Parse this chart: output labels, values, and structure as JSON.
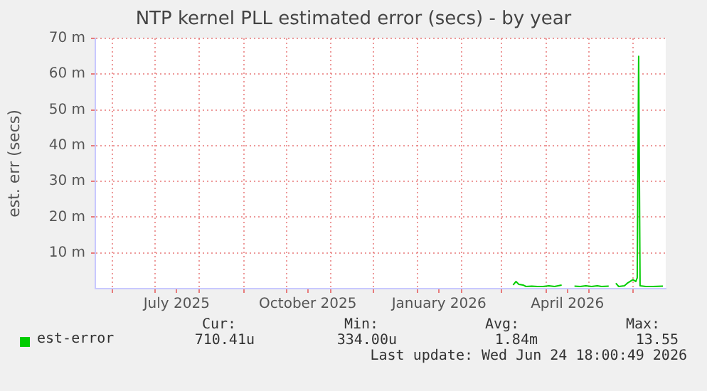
{
  "chart_data": {
    "type": "line",
    "title": "NTP kernel PLL estimated error (secs) - by year",
    "ylabel": "est. err (secs)",
    "x": [
      "2026-03-09",
      "2026-03-11",
      "2026-03-13",
      "2026-03-16",
      "2026-03-18",
      "2026-03-22",
      "2026-03-26",
      "2026-03-30",
      "2026-04-03",
      "2026-04-07",
      "2026-04-12",
      "2026-04-14",
      "2026-04-21",
      "2026-04-25",
      "2026-04-29",
      "2026-05-03",
      "2026-05-07",
      "2026-05-10",
      "2026-05-15",
      "2026-05-17",
      "2026-05-20",
      "2026-05-22",
      "2026-05-26",
      "2026-05-28",
      "2026-06-01",
      "2026-06-03",
      "2026-06-04",
      "2026-06-05",
      "2026-06-06",
      "2026-06-10",
      "2026-06-15",
      "2026-06-22"
    ],
    "series": [
      {
        "name": "est-error",
        "color": "#00cc00",
        "values": [
          1,
          2,
          1.2,
          1,
          0.6,
          0.7,
          0.6,
          0.6,
          0.8,
          0.6,
          1,
          null,
          0.7,
          0.6,
          0.8,
          0.6,
          0.8,
          0.6,
          0.7,
          null,
          1.5,
          0.6,
          0.8,
          1.5,
          2.5,
          2,
          3,
          65,
          0.8,
          0.6,
          0.6,
          0.7
        ]
      }
    ],
    "xlim": [
      "2025-05-20",
      "2026-06-24"
    ],
    "xticks": [
      {
        "value": "2025-06-01",
        "label": null
      },
      {
        "value": "2025-07-01",
        "label": null
      },
      {
        "value": "2025-07-16",
        "label": "July 2025"
      },
      {
        "value": "2025-08-01",
        "label": null
      },
      {
        "value": "2025-09-01",
        "label": null
      },
      {
        "value": "2025-10-01",
        "label": null
      },
      {
        "value": "2025-10-16",
        "label": "October 2025"
      },
      {
        "value": "2025-11-01",
        "label": null
      },
      {
        "value": "2025-12-01",
        "label": null
      },
      {
        "value": "2026-01-01",
        "label": null
      },
      {
        "value": "2026-01-16",
        "label": "January 2026"
      },
      {
        "value": "2026-02-01",
        "label": null
      },
      {
        "value": "2026-03-01",
        "label": null
      },
      {
        "value": "2026-04-01",
        "label": null
      },
      {
        "value": "2026-04-16",
        "label": "April 2026"
      },
      {
        "value": "2026-05-01",
        "label": null
      },
      {
        "value": "2026-06-01",
        "label": null
      }
    ],
    "ylim": [
      0,
      70
    ],
    "yticks": [
      {
        "value": 10,
        "label": "10 m"
      },
      {
        "value": 20,
        "label": "20 m"
      },
      {
        "value": 30,
        "label": "30 m"
      },
      {
        "value": 40,
        "label": "40 m"
      },
      {
        "value": 50,
        "label": "50 m"
      },
      {
        "value": 60,
        "label": "60 m"
      },
      {
        "value": 70,
        "label": "70 m"
      }
    ],
    "grid": true,
    "legend": "bottom left",
    "marker": "none",
    "line_style": "solid",
    "annotations": [
      "Cur:",
      "Min:",
      "Avg:",
      "Max:",
      "710.41u",
      "334.00u",
      "1.84m",
      "13.55",
      "Last update: Wed Jun 24 18:00:49 2026"
    ]
  }
}
